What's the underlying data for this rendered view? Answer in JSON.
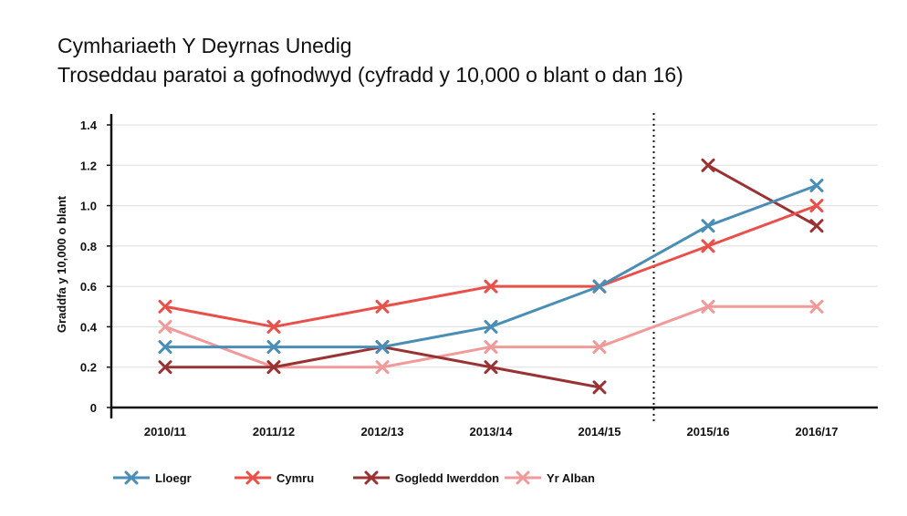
{
  "title_lines": [
    "Cymhariaeth Y Deyrnas Unedig",
    "Troseddau paratoi a gofnodwyd (cyfradd y 10,000 o blant o dan 16)"
  ],
  "chart_data": {
    "type": "line",
    "title": "Cymhariaeth Y Deyrnas Unedig\nTroseddau paratoi a gofnodwyd (cyfradd y 10,000 o blant o dan 16)",
    "xlabel": "",
    "ylabel": "Graddfa y 10,000 o blant",
    "categories": [
      "2010/11",
      "2011/12",
      "2012/13",
      "2013/14",
      "2014/15",
      "2015/16",
      "2016/17"
    ],
    "ylim": [
      0,
      1.4
    ],
    "yticks": [
      0,
      0.2,
      0.4,
      0.6,
      0.8,
      1.0,
      1.2,
      1.4
    ],
    "ytick_labels": [
      "0",
      "0.2",
      "0.4",
      "0.6",
      "0.8",
      "1.0",
      "1.2",
      "1.4"
    ],
    "grid": true,
    "divider_between": [
      "2014/15",
      "2015/16"
    ],
    "legend_position": "bottom-left",
    "series": [
      {
        "name": "Lloegr",
        "color": "#4a8db5",
        "values": [
          0.3,
          0.3,
          0.3,
          0.4,
          0.6,
          0.9,
          1.1
        ]
      },
      {
        "name": "Cymru",
        "color": "#e8504a",
        "values": [
          0.5,
          0.4,
          0.5,
          0.6,
          0.6,
          0.8,
          1.0
        ]
      },
      {
        "name": "Gogledd Iwerddon",
        "color": "#993333",
        "values": [
          0.2,
          0.2,
          0.3,
          0.2,
          0.1,
          1.2,
          0.9
        ],
        "break_after_index": 4
      },
      {
        "name": "Yr Alban",
        "color": "#f09a9a",
        "values": [
          0.4,
          0.2,
          0.2,
          0.3,
          0.3,
          0.5,
          0.5
        ]
      }
    ]
  }
}
